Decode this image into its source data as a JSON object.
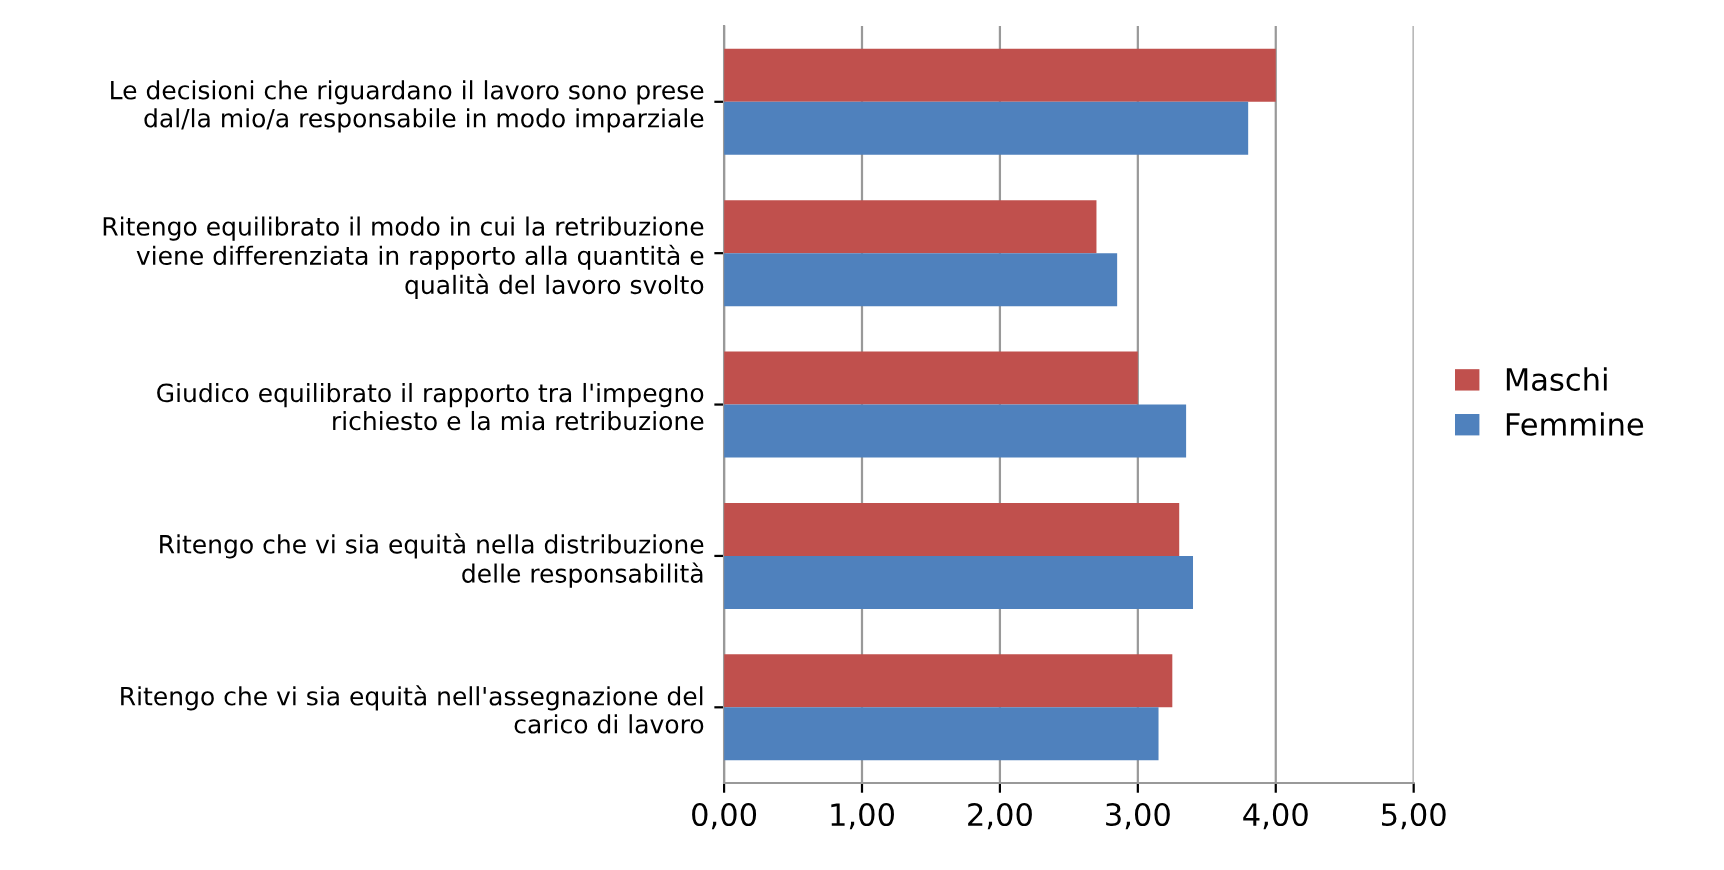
{
  "chart_data": {
    "type": "bar",
    "orientation": "horizontal",
    "categories": [
      "Le decisioni che riguardano il lavoro sono prese\ndal/la mio/a responsabile in modo imparziale",
      "Ritengo equilibrato il modo in cui la retribuzione\nviene differenziata in rapporto alla quantità e\nqualità del lavoro svolto",
      "Giudico equilibrato il rapporto tra l'impegno\nrichiesto e la mia retribuzione",
      "Ritengo che vi sia equità nella distribuzione\ndelle responsabilità",
      "Ritengo che vi sia equità nell'assegnazione del\ncarico di lavoro"
    ],
    "series": [
      {
        "name": "Maschi",
        "color": "#c0504d",
        "values": [
          4.0,
          2.7,
          3.0,
          3.3,
          3.25
        ]
      },
      {
        "name": "Femmine",
        "color": "#4f81bd",
        "values": [
          3.8,
          2.85,
          3.35,
          3.4,
          3.15
        ]
      }
    ],
    "xlim": [
      0,
      5
    ],
    "xticks": [
      {
        "value": 0,
        "label": "0,00"
      },
      {
        "value": 1,
        "label": "1,00"
      },
      {
        "value": 2,
        "label": "2,00"
      },
      {
        "value": 3,
        "label": "3,00"
      },
      {
        "value": 4,
        "label": "4,00"
      },
      {
        "value": 5,
        "label": "5,00"
      }
    ],
    "grid": "x",
    "legend": "right"
  }
}
